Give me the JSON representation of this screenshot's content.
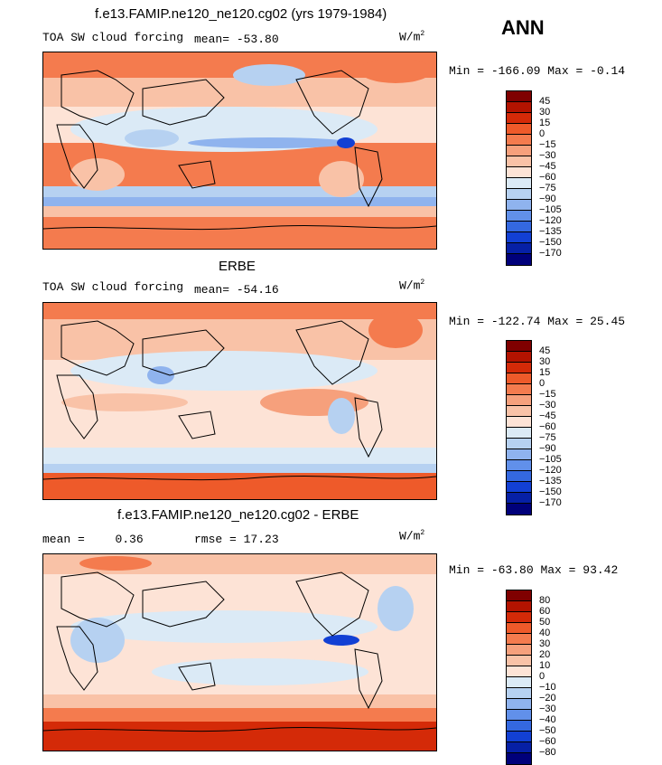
{
  "season": "ANN",
  "panels": [
    {
      "title": "f.e13.FAMIP.ne120_ne120.cg02 (yrs 1979-1984)",
      "variable": "TOA SW cloud forcing",
      "mean_label": "mean=",
      "mean_value": "-53.80",
      "units": "W/m",
      "units_sup": "2",
      "stats_min_label": "Min =",
      "min": "-166.09",
      "stats_max_label": "Max =",
      "max": "-0.14",
      "colorbar_levels": [
        "45",
        "30",
        "15",
        "0",
        "-15",
        "-30",
        "-45",
        "-60",
        "-75",
        "-90",
        "-105",
        "-120",
        "-135",
        "-150",
        "-170"
      ],
      "colorbar_colors": [
        "#7f0000",
        "#b31300",
        "#d42a08",
        "#ee5a2a",
        "#f47b4e",
        "#f6a07c",
        "#f9c2a7",
        "#fde3d6",
        "#dbeaf6",
        "#b6d1f1",
        "#8fb3ee",
        "#6190ea",
        "#3468e0",
        "#1240d4",
        "#0620a6",
        "#00007a"
      ]
    },
    {
      "title": "ERBE",
      "variable": "TOA SW cloud forcing",
      "mean_label": "mean=",
      "mean_value": "-54.16",
      "units": "W/m",
      "units_sup": "2",
      "stats_min_label": "Min =",
      "min": "-122.74",
      "stats_max_label": "Max =",
      "max": "25.45",
      "colorbar_levels": [
        "45",
        "30",
        "15",
        "0",
        "-15",
        "-30",
        "-45",
        "-60",
        "-75",
        "-90",
        "-105",
        "-120",
        "-135",
        "-150",
        "-170"
      ],
      "colorbar_colors": [
        "#7f0000",
        "#b31300",
        "#d42a08",
        "#ee5a2a",
        "#f47b4e",
        "#f6a07c",
        "#f9c2a7",
        "#fde3d6",
        "#dbeaf6",
        "#b6d1f1",
        "#8fb3ee",
        "#6190ea",
        "#3468e0",
        "#1240d4",
        "#0620a6",
        "#00007a"
      ]
    },
    {
      "title": "f.e13.FAMIP.ne120_ne120.cg02 - ERBE",
      "mean_label": "mean =",
      "mean_value": "0.36",
      "rmse_label": "rmse =",
      "rmse_value": "17.23",
      "units": "W/m",
      "units_sup": "2",
      "stats_min_label": "Min =",
      "min": "-63.80",
      "stats_max_label": "Max =",
      "max": "93.42",
      "colorbar_levels": [
        "80",
        "60",
        "50",
        "40",
        "30",
        "20",
        "10",
        "0",
        "-10",
        "-20",
        "-30",
        "-40",
        "-50",
        "-60",
        "-80"
      ],
      "colorbar_colors": [
        "#7f0000",
        "#b31300",
        "#d42a08",
        "#ee5a2a",
        "#f47b4e",
        "#f6a07c",
        "#f9c2a7",
        "#fde3d6",
        "#dbeaf6",
        "#b6d1f1",
        "#8fb3ee",
        "#6190ea",
        "#3468e0",
        "#1240d4",
        "#0620a6",
        "#00007a"
      ]
    }
  ]
}
